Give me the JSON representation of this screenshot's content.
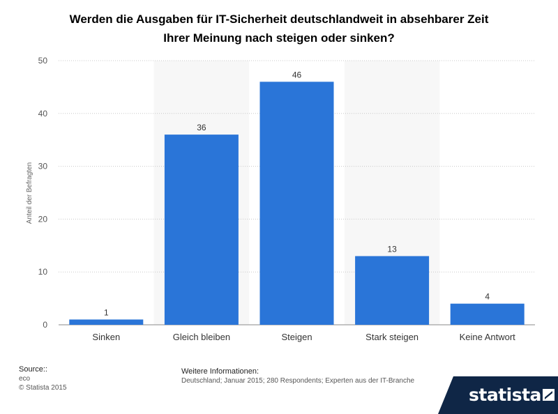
{
  "title": {
    "line1": "Werden die Ausgaben für IT-Sicherheit deutschlandweit in absehbarer Zeit",
    "line2": "Ihrer Meinung nach steigen oder sinken?"
  },
  "chart_data": {
    "type": "bar",
    "title": "Werden die Ausgaben für IT-Sicherheit deutschlandweit in absehbarer Zeit Ihrer Meinung nach steigen oder sinken?",
    "categories": [
      "Sinken",
      "Gleich bleiben",
      "Steigen",
      "Stark steigen",
      "Keine Antwort"
    ],
    "values": [
      1,
      36,
      46,
      13,
      4
    ],
    "ylabel": "Anteil der Befragten",
    "xlabel": "",
    "ylim": [
      0,
      50
    ],
    "yticks": [
      0,
      10,
      20,
      30,
      40,
      50
    ],
    "bar_color": "#2a75d8",
    "grid": true
  },
  "footer": {
    "source_label": "Source::",
    "source_value": "eco",
    "copyright": "© Statista 2015",
    "info_label": "Weitere Informationen:",
    "info_value": "Deutschland; Januar 2015; 280 Respondents; Experten aus der IT-Branche"
  },
  "brand": {
    "name": "statista",
    "icon": "statista-logo-icon"
  }
}
